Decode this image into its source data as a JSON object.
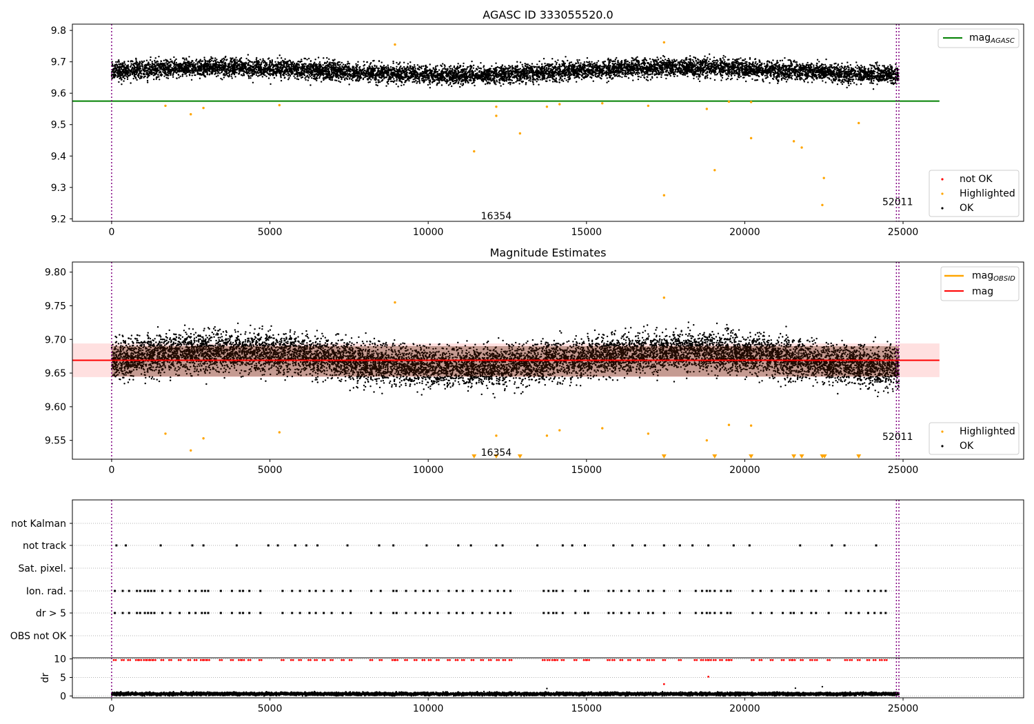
{
  "chart_data": [
    {
      "type": "scatter",
      "title": "AGASC ID 333055520.0",
      "xlim": [
        -1240,
        28810
      ],
      "ylim": [
        9.192,
        9.82
      ],
      "xticks": [
        0,
        5000,
        10000,
        15000,
        20000,
        25000
      ],
      "yticks": [
        9.2,
        9.3,
        9.4,
        9.5,
        9.6,
        9.7,
        9.8
      ],
      "ytick_labels": [
        "9.2",
        "9.3",
        "9.4",
        "9.5",
        "9.6",
        "9.7",
        "9.8"
      ],
      "mag_agasc": 9.575,
      "mag_agasc_xrange": [
        -1240,
        26150
      ],
      "vlines": [
        0,
        24790,
        24870
      ],
      "ok_band": {
        "x_range": [
          0,
          24870
        ],
        "center": 9.67,
        "spread": 0.025,
        "min": 9.595,
        "max": 9.745
      },
      "highlighted": [
        {
          "x": 1700,
          "y": 9.56
        },
        {
          "x": 2500,
          "y": 9.533
        },
        {
          "x": 2900,
          "y": 9.553
        },
        {
          "x": 5300,
          "y": 9.562
        },
        {
          "x": 8950,
          "y": 9.755
        },
        {
          "x": 11450,
          "y": 9.415
        },
        {
          "x": 12150,
          "y": 9.557
        },
        {
          "x": 12150,
          "y": 9.528
        },
        {
          "x": 12900,
          "y": 9.472
        },
        {
          "x": 13750,
          "y": 9.557
        },
        {
          "x": 14150,
          "y": 9.565
        },
        {
          "x": 15500,
          "y": 9.568
        },
        {
          "x": 16950,
          "y": 9.56
        },
        {
          "x": 17450,
          "y": 9.762
        },
        {
          "x": 17450,
          "y": 9.275
        },
        {
          "x": 18800,
          "y": 9.55
        },
        {
          "x": 19050,
          "y": 9.355
        },
        {
          "x": 19500,
          "y": 9.573
        },
        {
          "x": 20200,
          "y": 9.572
        },
        {
          "x": 20200,
          "y": 9.457
        },
        {
          "x": 21550,
          "y": 9.447
        },
        {
          "x": 21800,
          "y": 9.427
        },
        {
          "x": 22450,
          "y": 9.244
        },
        {
          "x": 22500,
          "y": 9.33
        },
        {
          "x": 23600,
          "y": 9.505
        }
      ],
      "annotations": [
        {
          "text": "16354",
          "x": 12150,
          "y": 9.21
        },
        {
          "text": "52011",
          "x": 24830,
          "y": 9.255
        }
      ],
      "legend_top": [
        {
          "label": "mag",
          "sub": "AGASC",
          "color": "#008000"
        }
      ],
      "legend_bottom": [
        {
          "label": "not OK",
          "color": "#ff0000"
        },
        {
          "label": "Highlighted",
          "color": "#ffa500"
        },
        {
          "label": "OK",
          "color": "#000000"
        }
      ]
    },
    {
      "type": "scatter",
      "title": "Magnitude Estimates",
      "xlim": [
        -1240,
        28810
      ],
      "ylim": [
        9.522,
        9.815
      ],
      "xticks": [
        0,
        5000,
        10000,
        15000,
        20000,
        25000
      ],
      "yticks": [
        9.55,
        9.6,
        9.65,
        9.7,
        9.75,
        9.8
      ],
      "ytick_labels": [
        "9.55",
        "9.60",
        "9.65",
        "9.70",
        "9.75",
        "9.80"
      ],
      "mag": 9.669,
      "mag_band": [
        9.644,
        9.694
      ],
      "mag_xrange": [
        -1240,
        26150
      ],
      "vlines": [
        0,
        24790,
        24870
      ],
      "ok_band": {
        "x_range": [
          0,
          24870
        ],
        "center": 9.67,
        "spread": 0.025,
        "min": 9.595,
        "max": 9.745
      },
      "highlighted": [
        {
          "x": 1700,
          "y": 9.56
        },
        {
          "x": 2500,
          "y": 9.535
        },
        {
          "x": 2900,
          "y": 9.553
        },
        {
          "x": 5300,
          "y": 9.562
        },
        {
          "x": 8950,
          "y": 9.755
        },
        {
          "x": 12150,
          "y": 9.557
        },
        {
          "x": 13750,
          "y": 9.557
        },
        {
          "x": 14150,
          "y": 9.565
        },
        {
          "x": 15500,
          "y": 9.568
        },
        {
          "x": 16950,
          "y": 9.56
        },
        {
          "x": 17450,
          "y": 9.762
        },
        {
          "x": 18800,
          "y": 9.55
        },
        {
          "x": 19500,
          "y": 9.573
        },
        {
          "x": 20200,
          "y": 9.572
        }
      ],
      "below_range_x": [
        11450,
        12150,
        12900,
        17450,
        19050,
        20200,
        21550,
        21800,
        22450,
        22520,
        23600
      ],
      "annotations": [
        {
          "text": "16354",
          "x": 12150,
          "y": 9.532
        },
        {
          "text": "52011",
          "x": 24830,
          "y": 9.556
        }
      ],
      "legend_top": [
        {
          "label": "mag",
          "sub": "OBSID",
          "color": "#ffa500"
        },
        {
          "label": "mag",
          "sub": "",
          "color": "#ff0000"
        }
      ],
      "legend_bottom": [
        {
          "label": "Highlighted",
          "color": "#ffa500"
        },
        {
          "label": "OK",
          "color": "#000000"
        }
      ]
    },
    {
      "type": "scatter",
      "xlim": [
        -1240,
        28810
      ],
      "xticks": [
        0,
        5000,
        10000,
        15000,
        20000,
        25000
      ],
      "vlines": [
        0,
        24790,
        24870
      ],
      "flag_rows": [
        "not Kalman",
        "not track",
        "Sat. pixel.",
        "Ion. rad.",
        "dr > 5",
        "OBS not OK"
      ],
      "flag_points": {
        "not track": [
          150,
          450,
          1550,
          2550,
          2900,
          3950,
          4950,
          5250,
          5800,
          6150,
          6500,
          7450,
          8450,
          8900,
          9950,
          10950,
          11350,
          12150,
          12350,
          13450,
          14250,
          14550,
          14950,
          15850,
          16450,
          16850,
          17450,
          17950,
          18350,
          18850,
          19650,
          20150,
          21750,
          22750,
          23150,
          24150
        ],
        "Ion. rad.": [
          100,
          350,
          550,
          800,
          900,
          1050,
          1150,
          1250,
          1350,
          1600,
          1850,
          2150,
          2450,
          2650,
          2850,
          2950,
          3050,
          3450,
          3800,
          4050,
          4150,
          4350,
          4700,
          5400,
          5700,
          5950,
          6250,
          6450,
          6700,
          6950,
          7300,
          7550,
          8200,
          8500,
          8900,
          9000,
          9300,
          9600,
          9850,
          10050,
          10300,
          10650,
          10900,
          11100,
          11400,
          11700,
          11950,
          12200,
          12400,
          12600,
          13650,
          13800,
          13950,
          14050,
          14250,
          14650,
          14950,
          15050,
          15700,
          15850,
          16100,
          16350,
          16650,
          16950,
          17100,
          17450,
          17950,
          18450,
          18650,
          18800,
          18900,
          19050,
          19250,
          19450,
          19550,
          20250,
          20500,
          20850,
          21200,
          21450,
          21550,
          21800,
          22100,
          22250,
          22650,
          23200,
          23350,
          23600,
          23900,
          24100,
          24300,
          24450
        ],
        "dr > 5": [
          100,
          350,
          550,
          800,
          900,
          1050,
          1150,
          1250,
          1350,
          1600,
          1850,
          2150,
          2450,
          2650,
          2850,
          2950,
          3050,
          3450,
          3800,
          4050,
          4150,
          4350,
          4700,
          5400,
          5700,
          5950,
          6250,
          6450,
          6700,
          6950,
          7300,
          7550,
          8200,
          8500,
          8900,
          9000,
          9300,
          9600,
          9850,
          10050,
          10300,
          10650,
          10900,
          11100,
          11400,
          11700,
          11950,
          12200,
          12400,
          12600,
          13650,
          13800,
          13950,
          14050,
          14250,
          14650,
          14950,
          15050,
          15700,
          15850,
          16100,
          16350,
          16650,
          16950,
          17100,
          17450,
          17950,
          18450,
          18650,
          18800,
          18900,
          19050,
          19250,
          19450,
          19550,
          20250,
          20500,
          20850,
          21200,
          21450,
          21550,
          21800,
          22100,
          22250,
          22650,
          23200,
          23350,
          23600,
          23900,
          24100,
          24300,
          24450
        ]
      }
    },
    {
      "type": "scatter",
      "ylabel": "dr",
      "xlim": [
        -1240,
        28810
      ],
      "ylim": [
        -0.5,
        10.3
      ],
      "xticks": [
        0,
        5000,
        10000,
        15000,
        20000,
        25000
      ],
      "yticks": [
        0,
        5,
        10
      ],
      "vlines": [
        0,
        24790,
        24870
      ],
      "ok_band": {
        "x_range": [
          0,
          24870
        ],
        "center": 0.55,
        "spread": 0.35,
        "min": 0.0,
        "max": 1.4
      },
      "high_x": [
        100,
        350,
        550,
        800,
        900,
        1050,
        1150,
        1250,
        1350,
        1600,
        1850,
        2150,
        2450,
        2650,
        2850,
        2950,
        3050,
        3450,
        3800,
        4050,
        4150,
        4350,
        4700,
        5400,
        5700,
        5950,
        6250,
        6450,
        6700,
        6950,
        7300,
        7550,
        8200,
        8500,
        8900,
        9000,
        9300,
        9600,
        9850,
        10050,
        10300,
        10650,
        10900,
        11100,
        11400,
        11700,
        11950,
        12200,
        12400,
        12600,
        13650,
        13800,
        13950,
        14050,
        14250,
        14650,
        14950,
        15050,
        15700,
        15850,
        16100,
        16350,
        16650,
        16950,
        17100,
        17450,
        17950,
        18450,
        18650,
        18800,
        18900,
        19050,
        19250,
        19450,
        19550,
        20250,
        20500,
        20850,
        21200,
        21450,
        21550,
        21800,
        22100,
        22250,
        22650,
        23200,
        23350,
        23600,
        23900,
        24100,
        24300,
        24450
      ],
      "high_y": 9.7,
      "extra_red": [
        {
          "x": 17450,
          "y": 3.2
        },
        {
          "x": 18850,
          "y": 5.2
        }
      ],
      "extra_black": [
        {
          "x": 13750,
          "y": 2.0
        },
        {
          "x": 21600,
          "y": 2.1
        },
        {
          "x": 22450,
          "y": 2.5
        }
      ]
    }
  ]
}
